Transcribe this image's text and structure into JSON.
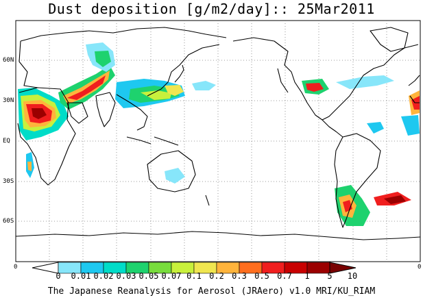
{
  "title": "Dust deposition [g/m2/day]:: 25Mar2011",
  "footer": "The Japanese Reanalysis for Aerosol (JRAero) v1.0 MRI/KU_RIAM",
  "lat_labels": [
    "60N",
    "30N",
    "EQ",
    "30S",
    "60S"
  ],
  "lon_end_labels": [
    "0",
    "0"
  ],
  "colorbar": {
    "labels": [
      "0",
      "0.01",
      "0.02",
      "0.03",
      "0.05",
      "0.07",
      "0.1",
      "0.2",
      "0.3",
      "0.5",
      "0.7",
      "1",
      "5",
      "10"
    ],
    "colors": [
      "#ffffff",
      "#87e6fa",
      "#1ec8f0",
      "#00dcc8",
      "#1ed26e",
      "#78dc3c",
      "#c8f03c",
      "#f0e650",
      "#ffb43c",
      "#ff6e1e",
      "#f01e1e",
      "#c80000",
      "#9b0000",
      "#780000"
    ]
  }
}
